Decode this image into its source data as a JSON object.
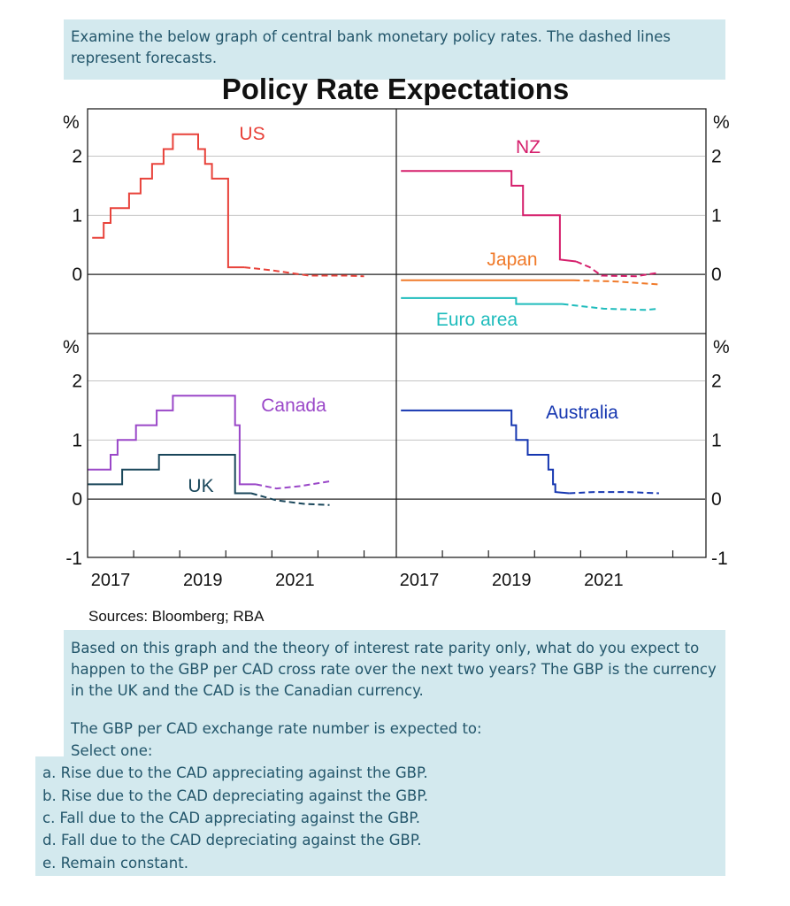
{
  "question": {
    "intro": "Examine the below graph of central bank monetary policy rates. The dashed lines represent forecasts.",
    "body": "Based on this graph and the theory of interest rate parity only, what do you expect to happen to the GBP per CAD cross rate over the next two years? The GBP is the currency in the UK and the CAD is the Canadian currency.",
    "prompt": "The GBP per CAD exchange rate number is expected to:",
    "select_label": "Select one:",
    "options": [
      "a. Rise due to the CAD appreciating against the GBP.",
      "b. Rise due to the CAD depreciating against the GBP.",
      "c. Fall due to the CAD appreciating against the GBP.",
      "d. Fall due to the CAD depreciating against the GBP.",
      "e. Remain constant."
    ]
  },
  "chart_data": {
    "type": "line",
    "title": "Policy Rate Expectations",
    "source": "Sources: Bloomberg; RBA",
    "unit_label": "%",
    "x_tick_labels": [
      "2017",
      "2019",
      "2021"
    ],
    "xlim": [
      2016,
      2022.7
    ],
    "panels": [
      {
        "position": "top-left",
        "ylim": [
          -1,
          2.8
        ],
        "y_ticks": [
          0,
          1,
          2
        ],
        "series": [
          {
            "name": "US",
            "color": "#e8423a",
            "actual": [
              [
                2016.1,
                0.62
              ],
              [
                2016.35,
                0.62
              ],
              [
                2016.35,
                0.87
              ],
              [
                2016.5,
                0.87
              ],
              [
                2016.5,
                1.12
              ],
              [
                2016.9,
                1.12
              ],
              [
                2016.9,
                1.37
              ],
              [
                2017.15,
                1.37
              ],
              [
                2017.15,
                1.62
              ],
              [
                2017.4,
                1.62
              ],
              [
                2017.4,
                1.87
              ],
              [
                2017.65,
                1.87
              ],
              [
                2017.65,
                2.12
              ],
              [
                2017.85,
                2.12
              ],
              [
                2017.85,
                2.37
              ],
              [
                2018.4,
                2.37
              ],
              [
                2018.4,
                2.12
              ],
              [
                2018.55,
                2.12
              ],
              [
                2018.55,
                1.87
              ],
              [
                2018.7,
                1.87
              ],
              [
                2018.7,
                1.62
              ],
              [
                2019.05,
                1.62
              ],
              [
                2019.05,
                0.12
              ],
              [
                2019.4,
                0.12
              ]
            ],
            "forecast": [
              [
                2019.4,
                0.12
              ],
              [
                2020.0,
                0.07
              ],
              [
                2020.8,
                -0.02
              ],
              [
                2021.6,
                -0.02
              ],
              [
                2022.0,
                -0.03
              ]
            ]
          }
        ]
      },
      {
        "position": "top-right",
        "ylim": [
          -1,
          2.8
        ],
        "y_ticks": [
          0,
          1,
          2
        ],
        "series": [
          {
            "name": "NZ",
            "color": "#d51e6b",
            "actual": [
              [
                2016.1,
                1.75
              ],
              [
                2018.5,
                1.75
              ],
              [
                2018.5,
                1.5
              ],
              [
                2018.75,
                1.5
              ],
              [
                2018.75,
                1.0
              ],
              [
                2019.55,
                1.0
              ],
              [
                2019.55,
                0.25
              ],
              [
                2019.9,
                0.22
              ]
            ],
            "forecast": [
              [
                2019.9,
                0.22
              ],
              [
                2020.2,
                0.12
              ],
              [
                2020.45,
                -0.02
              ],
              [
                2021.2,
                -0.03
              ],
              [
                2021.7,
                0.03
              ]
            ]
          },
          {
            "name": "Japan",
            "color": "#f07a2a",
            "actual": [
              [
                2016.1,
                -0.1
              ],
              [
                2019.85,
                -0.1
              ]
            ],
            "forecast": [
              [
                2019.85,
                -0.1
              ],
              [
                2020.8,
                -0.12
              ],
              [
                2021.7,
                -0.17
              ]
            ]
          },
          {
            "name": "Euro area",
            "color": "#1fbcbc",
            "actual": [
              [
                2016.1,
                -0.4
              ],
              [
                2018.6,
                -0.4
              ],
              [
                2018.6,
                -0.5
              ],
              [
                2019.6,
                -0.5
              ]
            ],
            "forecast": [
              [
                2019.6,
                -0.5
              ],
              [
                2020.5,
                -0.58
              ],
              [
                2021.4,
                -0.6
              ],
              [
                2021.7,
                -0.58
              ]
            ]
          }
        ]
      },
      {
        "position": "bottom-left",
        "ylim": [
          -1,
          2.8
        ],
        "y_ticks": [
          0,
          1,
          2
        ],
        "series": [
          {
            "name": "Canada",
            "color": "#9a47c8",
            "actual": [
              [
                2016.0,
                0.5
              ],
              [
                2016.5,
                0.5
              ],
              [
                2016.5,
                0.75
              ],
              [
                2016.65,
                0.75
              ],
              [
                2016.65,
                1.0
              ],
              [
                2017.05,
                1.0
              ],
              [
                2017.05,
                1.25
              ],
              [
                2017.5,
                1.25
              ],
              [
                2017.5,
                1.5
              ],
              [
                2017.85,
                1.5
              ],
              [
                2017.85,
                1.75
              ],
              [
                2019.2,
                1.75
              ],
              [
                2019.2,
                1.25
              ],
              [
                2019.3,
                1.25
              ],
              [
                2019.3,
                0.25
              ],
              [
                2019.65,
                0.25
              ]
            ],
            "forecast": [
              [
                2019.65,
                0.25
              ],
              [
                2020.1,
                0.18
              ],
              [
                2020.6,
                0.22
              ],
              [
                2021.25,
                0.3
              ]
            ]
          },
          {
            "name": "UK",
            "color": "#19465a",
            "actual": [
              [
                2016.0,
                0.25
              ],
              [
                2016.75,
                0.25
              ],
              [
                2016.75,
                0.5
              ],
              [
                2017.55,
                0.5
              ],
              [
                2017.55,
                0.75
              ],
              [
                2019.2,
                0.75
              ],
              [
                2019.2,
                0.1
              ],
              [
                2019.55,
                0.1
              ]
            ],
            "forecast": [
              [
                2019.55,
                0.1
              ],
              [
                2020.1,
                -0.02
              ],
              [
                2020.7,
                -0.08
              ],
              [
                2021.25,
                -0.1
              ]
            ]
          }
        ]
      },
      {
        "position": "bottom-right",
        "ylim": [
          -1,
          2.8
        ],
        "y_ticks": [
          0,
          1,
          2
        ],
        "series": [
          {
            "name": "Australia",
            "color": "#1536b0",
            "actual": [
              [
                2016.1,
                1.5
              ],
              [
                2018.5,
                1.5
              ],
              [
                2018.5,
                1.25
              ],
              [
                2018.6,
                1.25
              ],
              [
                2018.6,
                1.0
              ],
              [
                2018.85,
                1.0
              ],
              [
                2018.85,
                0.75
              ],
              [
                2019.3,
                0.75
              ],
              [
                2019.3,
                0.5
              ],
              [
                2019.4,
                0.5
              ],
              [
                2019.4,
                0.25
              ],
              [
                2019.45,
                0.25
              ],
              [
                2019.45,
                0.12
              ],
              [
                2019.75,
                0.1
              ]
            ],
            "forecast": [
              [
                2019.75,
                0.1
              ],
              [
                2020.3,
                0.12
              ],
              [
                2021.0,
                0.12
              ],
              [
                2021.7,
                0.1
              ]
            ]
          }
        ]
      }
    ]
  }
}
